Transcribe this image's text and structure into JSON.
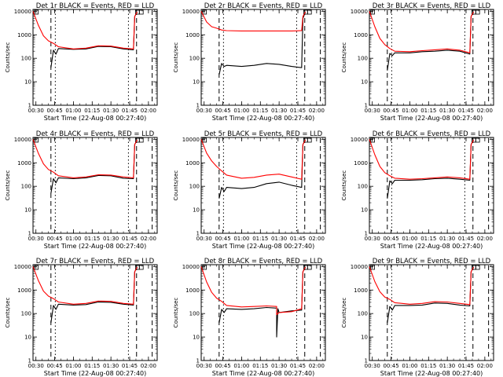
{
  "chart_data": [
    {
      "type": "line",
      "title": "Det 1r BLACK = Events, RED = LLD",
      "xlabel": "Start Time (22-Aug-08 00:27:40)",
      "ylabel": "Counts/sec",
      "x_ticks": [
        "00:30",
        "00:45",
        "01:00",
        "01:15",
        "01:30",
        "01:45",
        "02:00"
      ],
      "y_ticks": [
        "1",
        "10",
        "100",
        "1000",
        "10000"
      ],
      "y_scale": "log",
      "ylim": [
        1,
        12000
      ],
      "series": [
        {
          "name": "BLACK = Events",
          "color": "#000000",
          "x": [
            "00:27:40",
            "00:42",
            "00:42",
            "00:44",
            "00:46",
            "00:48",
            "01:00",
            "01:10",
            "01:20",
            "01:30",
            "01:40",
            "01:48",
            "01:49",
            "01:51"
          ],
          "y": [
            null,
            null,
            40,
            220,
            150,
            260,
            240,
            250,
            320,
            310,
            250,
            230,
            6000,
            9500
          ]
        },
        {
          "name": "RED = LLD",
          "color": "#ff0000",
          "x": [
            "00:27:40",
            "00:32",
            "00:36",
            "00:40",
            "00:44",
            "00:48",
            "01:00",
            "01:10",
            "01:20",
            "01:30",
            "01:40",
            "01:48",
            "01:49",
            "01:51"
          ],
          "y": [
            10000,
            2500,
            900,
            550,
            430,
            310,
            250,
            270,
            340,
            330,
            270,
            250,
            6000,
            9500
          ]
        }
      ]
    },
    {
      "type": "line",
      "title": "Det 2r BLACK = Events, RED = LLD",
      "xlabel": "Start Time (22-Aug-08 00:27:40)",
      "ylabel": "Counts/sec",
      "x_ticks": [
        "00:30",
        "00:45",
        "01:00",
        "01:15",
        "01:30",
        "01:45",
        "02:00"
      ],
      "y_ticks": [
        "1",
        "10",
        "100",
        "1000",
        "10000"
      ],
      "y_scale": "log",
      "ylim": [
        1,
        12000
      ],
      "series": [
        {
          "name": "BLACK = Events",
          "color": "#000000",
          "x": [
            "00:42",
            "00:44",
            "00:46",
            "00:48",
            "01:00",
            "01:10",
            "01:20",
            "01:30",
            "01:40",
            "01:48",
            "01:49",
            "01:51"
          ],
          "y": [
            20,
            60,
            45,
            50,
            45,
            50,
            60,
            55,
            45,
            40,
            5000,
            9500
          ]
        },
        {
          "name": "RED = LLD",
          "color": "#ff0000",
          "x": [
            "00:27:40",
            "00:32",
            "00:36",
            "00:40",
            "00:44",
            "00:48",
            "01:00",
            "01:10",
            "01:20",
            "01:30",
            "01:40",
            "01:48",
            "01:49",
            "01:51"
          ],
          "y": [
            10000,
            3500,
            2200,
            1900,
            1600,
            1500,
            1450,
            1450,
            1450,
            1450,
            1450,
            1500,
            6000,
            9500
          ]
        }
      ]
    },
    {
      "type": "line",
      "title": "Det 3r BLACK = Events, RED = LLD",
      "xlabel": "Start Time (22-Aug-08 00:27:40)",
      "ylabel": "Counts/sec",
      "x_ticks": [
        "00:30",
        "00:45",
        "01:00",
        "01:15",
        "01:30",
        "01:45",
        "02:00"
      ],
      "y_ticks": [
        "1",
        "10",
        "100",
        "1000",
        "10000"
      ],
      "y_scale": "log",
      "ylim": [
        1,
        12000
      ],
      "series": [
        {
          "name": "BLACK = Events",
          "color": "#000000",
          "x": [
            "00:42",
            "00:44",
            "00:46",
            "00:48",
            "01:00",
            "01:10",
            "01:20",
            "01:30",
            "01:40",
            "01:48",
            "01:49",
            "01:51"
          ],
          "y": [
            30,
            160,
            130,
            170,
            170,
            190,
            200,
            220,
            200,
            150,
            6000,
            9500
          ]
        },
        {
          "name": "RED = LLD",
          "color": "#ff0000",
          "x": [
            "00:27:40",
            "00:32",
            "00:36",
            "00:40",
            "00:44",
            "00:48",
            "01:00",
            "01:10",
            "01:20",
            "01:30",
            "01:40",
            "01:48",
            "01:49",
            "01:51"
          ],
          "y": [
            10000,
            2200,
            700,
            380,
            260,
            200,
            190,
            210,
            230,
            250,
            220,
            170,
            6000,
            9500
          ]
        }
      ]
    },
    {
      "type": "line",
      "title": "Det 4r BLACK = Events, RED = LLD",
      "xlabel": "Start Time (22-Aug-08 00:27:40)",
      "ylabel": "Counts/sec",
      "x_ticks": [
        "00:30",
        "00:45",
        "01:00",
        "01:15",
        "01:30",
        "01:45",
        "02:00"
      ],
      "y_ticks": [
        "1",
        "10",
        "100",
        "1000",
        "10000"
      ],
      "y_scale": "log",
      "ylim": [
        1,
        12000
      ],
      "series": [
        {
          "name": "BLACK = Events",
          "color": "#000000",
          "x": [
            "00:42",
            "00:44",
            "00:46",
            "00:48",
            "01:00",
            "01:10",
            "01:20",
            "01:30",
            "01:40",
            "01:48",
            "01:49",
            "01:51"
          ],
          "y": [
            50,
            210,
            140,
            230,
            210,
            230,
            290,
            280,
            220,
            210,
            6000,
            9500
          ]
        },
        {
          "name": "RED = LLD",
          "color": "#ff0000",
          "x": [
            "00:27:40",
            "00:32",
            "00:36",
            "00:40",
            "00:44",
            "00:48",
            "01:00",
            "01:10",
            "01:20",
            "01:30",
            "01:40",
            "01:48",
            "01:49",
            "01:51"
          ],
          "y": [
            10000,
            2500,
            900,
            520,
            400,
            280,
            230,
            250,
            310,
            300,
            250,
            230,
            6000,
            9500
          ]
        }
      ]
    },
    {
      "type": "line",
      "title": "Det 5r BLACK = Events, RED = LLD",
      "xlabel": "Start Time (22-Aug-08 00:27:40)",
      "ylabel": "Counts/sec",
      "x_ticks": [
        "00:30",
        "00:45",
        "01:00",
        "01:15",
        "01:30",
        "01:45",
        "02:00"
      ],
      "y_ticks": [
        "1",
        "10",
        "100",
        "1000",
        "10000"
      ],
      "y_scale": "log",
      "ylim": [
        1,
        12000
      ],
      "series": [
        {
          "name": "BLACK = Events",
          "color": "#000000",
          "x": [
            "00:42",
            "00:44",
            "00:46",
            "00:48",
            "01:00",
            "01:10",
            "01:20",
            "01:30",
            "01:40",
            "01:48",
            "01:49",
            "01:51"
          ],
          "y": [
            30,
            90,
            60,
            90,
            80,
            90,
            130,
            150,
            110,
            90,
            6000,
            9500
          ]
        },
        {
          "name": "RED = LLD",
          "color": "#ff0000",
          "x": [
            "00:27:40",
            "00:32",
            "00:36",
            "00:40",
            "00:44",
            "00:48",
            "01:00",
            "01:10",
            "01:20",
            "01:30",
            "01:40",
            "01:48",
            "01:49",
            "01:51"
          ],
          "y": [
            10000,
            2600,
            1200,
            700,
            450,
            300,
            220,
            240,
            300,
            330,
            250,
            200,
            6000,
            9500
          ]
        }
      ]
    },
    {
      "type": "line",
      "title": "Det 6r BLACK = Events, RED = LLD",
      "xlabel": "Start Time (22-Aug-08 00:27:40)",
      "ylabel": "Counts/sec",
      "x_ticks": [
        "00:30",
        "00:45",
        "01:00",
        "01:15",
        "01:30",
        "01:45",
        "02:00"
      ],
      "y_ticks": [
        "1",
        "10",
        "100",
        "1000",
        "10000"
      ],
      "y_scale": "log",
      "ylim": [
        1,
        12000
      ],
      "series": [
        {
          "name": "BLACK = Events",
          "color": "#000000",
          "x": [
            "00:42",
            "00:44",
            "00:46",
            "00:48",
            "01:00",
            "01:10",
            "01:20",
            "01:30",
            "01:40",
            "01:48",
            "01:49",
            "01:51"
          ],
          "y": [
            30,
            170,
            130,
            180,
            180,
            190,
            210,
            220,
            200,
            180,
            6000,
            9500
          ]
        },
        {
          "name": "RED = LLD",
          "color": "#ff0000",
          "x": [
            "00:27:40",
            "00:32",
            "00:36",
            "00:40",
            "00:44",
            "00:48",
            "01:00",
            "01:10",
            "01:20",
            "01:30",
            "01:40",
            "01:48",
            "01:49",
            "01:51"
          ],
          "y": [
            10000,
            2200,
            700,
            380,
            280,
            220,
            200,
            210,
            230,
            250,
            230,
            200,
            6000,
            9500
          ]
        }
      ]
    },
    {
      "type": "line",
      "title": "Det 7r BLACK = Events, RED = LLD",
      "xlabel": "Start Time (22-Aug-08 00:27:40)",
      "ylabel": "Counts/sec",
      "x_ticks": [
        "00:30",
        "00:45",
        "01:00",
        "01:15",
        "01:30",
        "01:45",
        "02:00"
      ],
      "y_ticks": [
        "1",
        "10",
        "100",
        "1000",
        "10000"
      ],
      "y_scale": "log",
      "ylim": [
        1,
        12000
      ],
      "series": [
        {
          "name": "BLACK = Events",
          "color": "#000000",
          "x": [
            "00:42",
            "00:44",
            "00:46",
            "00:48",
            "01:00",
            "01:10",
            "01:20",
            "01:30",
            "01:40",
            "01:48",
            "01:49",
            "01:51"
          ],
          "y": [
            40,
            220,
            150,
            250,
            230,
            240,
            310,
            300,
            250,
            230,
            6000,
            9500
          ]
        },
        {
          "name": "RED = LLD",
          "color": "#ff0000",
          "x": [
            "00:27:40",
            "00:32",
            "00:36",
            "00:40",
            "00:44",
            "00:48",
            "01:00",
            "01:10",
            "01:20",
            "01:30",
            "01:40",
            "01:48",
            "01:49",
            "01:51"
          ],
          "y": [
            10000,
            2500,
            900,
            550,
            430,
            310,
            250,
            270,
            340,
            330,
            270,
            250,
            6000,
            9500
          ]
        }
      ]
    },
    {
      "type": "line",
      "title": "Det 8r BLACK = Events, RED = LLD",
      "xlabel": "Start Time (22-Aug-08 00:27:40)",
      "ylabel": "Counts/sec",
      "x_ticks": [
        "00:30",
        "00:45",
        "01:00",
        "01:15",
        "01:30",
        "01:45",
        "02:00"
      ],
      "y_ticks": [
        "1",
        "10",
        "100",
        "1000",
        "10000"
      ],
      "y_scale": "log",
      "ylim": [
        1,
        12000
      ],
      "series": [
        {
          "name": "BLACK = Events",
          "color": "#000000",
          "x": [
            "00:42",
            "00:44",
            "00:46",
            "00:48",
            "01:00",
            "01:10",
            "01:20",
            "01:28",
            "01:28",
            "01:29",
            "01:30",
            "01:40",
            "01:48",
            "01:49",
            "01:51"
          ],
          "y": [
            40,
            150,
            110,
            160,
            150,
            160,
            180,
            170,
            10,
            160,
            110,
            130,
            140,
            6000,
            9500
          ]
        },
        {
          "name": "RED = LLD",
          "color": "#ff0000",
          "x": [
            "00:27:40",
            "00:32",
            "00:36",
            "00:40",
            "00:44",
            "00:48",
            "01:00",
            "01:10",
            "01:20",
            "01:28",
            "01:28",
            "01:30",
            "01:40",
            "01:48",
            "01:49",
            "01:51"
          ],
          "y": [
            10000,
            2200,
            800,
            450,
            330,
            220,
            190,
            200,
            210,
            200,
            90,
            110,
            120,
            160,
            6000,
            9500
          ]
        }
      ]
    },
    {
      "type": "line",
      "title": "Det 9r BLACK = Events, RED = LLD",
      "xlabel": "Start Time (22-Aug-08 00:27:40)",
      "ylabel": "Counts/sec",
      "x_ticks": [
        "00:30",
        "00:45",
        "01:00",
        "01:15",
        "01:30",
        "01:45",
        "02:00"
      ],
      "y_ticks": [
        "1",
        "10",
        "100",
        "1000",
        "10000"
      ],
      "y_scale": "log",
      "ylim": [
        1,
        12000
      ],
      "series": [
        {
          "name": "BLACK = Events",
          "color": "#000000",
          "x": [
            "00:42",
            "00:44",
            "00:46",
            "00:48",
            "01:00",
            "01:10",
            "01:20",
            "01:30",
            "01:40",
            "01:48",
            "01:49",
            "01:51"
          ],
          "y": [
            40,
            200,
            140,
            220,
            220,
            230,
            280,
            270,
            230,
            210,
            6000,
            9500
          ]
        },
        {
          "name": "RED = LLD",
          "color": "#ff0000",
          "x": [
            "00:27:40",
            "00:32",
            "00:36",
            "00:40",
            "00:44",
            "00:48",
            "01:00",
            "01:10",
            "01:20",
            "01:30",
            "01:40",
            "01:48",
            "01:49",
            "01:51"
          ],
          "y": [
            10000,
            2300,
            850,
            500,
            400,
            290,
            250,
            270,
            320,
            310,
            270,
            240,
            6000,
            9500
          ]
        }
      ]
    }
  ]
}
